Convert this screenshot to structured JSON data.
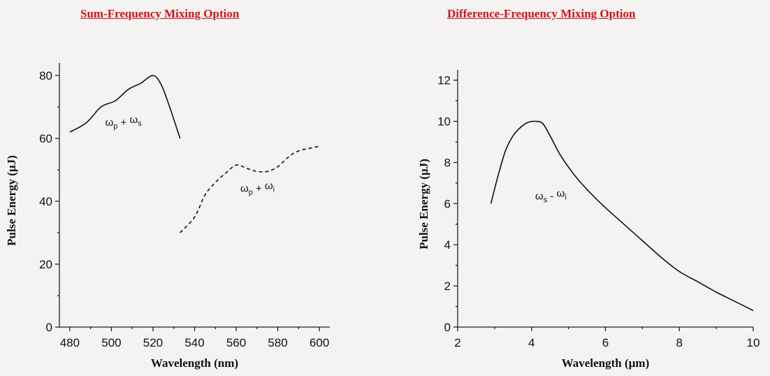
{
  "titles": {
    "left": "Sum-Frequency Mixing Option",
    "right": "Difference-Frequency Mixing Option"
  },
  "colors": {
    "title": "#d4111b",
    "line": "#111111",
    "background": "#f4f3f1"
  },
  "chart_data": [
    {
      "type": "line",
      "title": "Sum-Frequency Mixing Option",
      "xlabel": "Wavelength (nm)",
      "ylabel": "Pulse Energy (µJ)",
      "xlim": [
        475,
        605
      ],
      "ylim": [
        0,
        84
      ],
      "xticks": [
        480,
        500,
        520,
        540,
        560,
        580,
        600
      ],
      "yticks": [
        0,
        20,
        40,
        60,
        80
      ],
      "grid": false,
      "series": [
        {
          "id": "sfm-signal",
          "style": "solid",
          "annotation": {
            "base": "ω",
            "sub1": "p",
            "op": " + ",
            "sub2": "s",
            "at": [
              497,
              64
            ]
          },
          "x": [
            480,
            488,
            495,
            502,
            508,
            514,
            520,
            524,
            528,
            533
          ],
          "y": [
            62,
            65,
            70,
            72,
            75.5,
            77.5,
            80,
            77,
            70,
            60
          ]
        },
        {
          "id": "sfm-idler",
          "style": "dashed",
          "annotation": {
            "base": "ω",
            "sub1": "p",
            "op": " + ",
            "sub2": "i",
            "at": [
              562,
              43
            ]
          },
          "x": [
            533,
            540,
            545,
            550,
            555,
            560,
            565,
            570,
            575,
            580,
            585,
            590,
            600
          ],
          "y": [
            30,
            35,
            42,
            46,
            49,
            51.5,
            50.5,
            49.5,
            49.5,
            51,
            54,
            56,
            57.5
          ]
        }
      ]
    },
    {
      "type": "line",
      "title": "Difference-Frequency Mixing Option",
      "xlabel": "Wavelength (µm)",
      "ylabel": "Pulse Energy (µJ)",
      "xlim": [
        2,
        10
      ],
      "ylim": [
        0,
        12.5
      ],
      "xticks": [
        2,
        4,
        6,
        8,
        10
      ],
      "yticks": [
        0,
        2,
        4,
        6,
        8,
        10,
        12
      ],
      "grid": false,
      "series": [
        {
          "id": "dfm",
          "style": "solid",
          "annotation": {
            "base": "ω",
            "sub1": "s",
            "op": " - ",
            "sub2": "i",
            "at": [
              4.1,
              6.2
            ]
          },
          "x": [
            2.9,
            3.1,
            3.3,
            3.5,
            3.7,
            3.9,
            4.1,
            4.3,
            4.5,
            4.8,
            5.2,
            5.6,
            6.0,
            6.5,
            7.0,
            7.5,
            8.0,
            8.5,
            9.0,
            9.5,
            10.0
          ],
          "y": [
            6.0,
            7.4,
            8.6,
            9.3,
            9.7,
            9.95,
            10.0,
            9.9,
            9.3,
            8.3,
            7.3,
            6.5,
            5.8,
            5.0,
            4.2,
            3.4,
            2.7,
            2.2,
            1.7,
            1.25,
            0.8
          ]
        }
      ]
    }
  ]
}
